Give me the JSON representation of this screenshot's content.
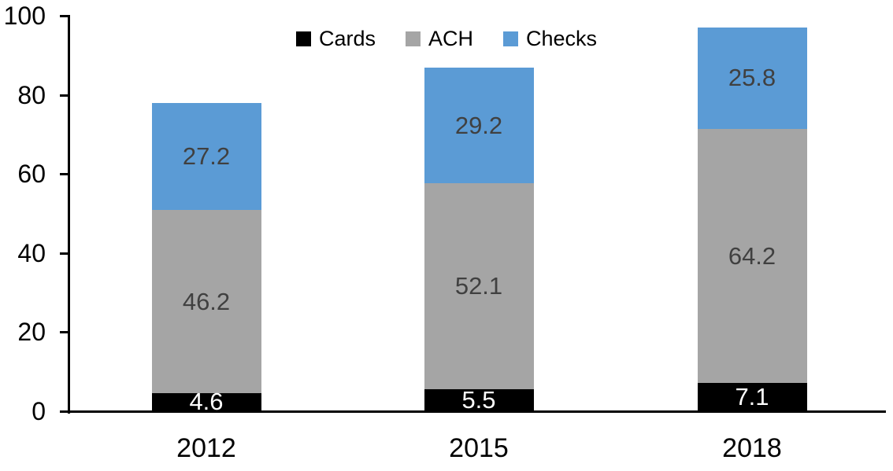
{
  "chart_data": {
    "type": "bar",
    "stacked": true,
    "title": "",
    "xlabel": "",
    "ylabel": "",
    "categories": [
      "2012",
      "2015",
      "2018"
    ],
    "series": [
      {
        "name": "Cards",
        "color": "#000000",
        "label_color": "#ffffff",
        "values": [
          4.6,
          5.5,
          7.1
        ]
      },
      {
        "name": "ACH",
        "color": "#a5a5a5",
        "label_color": "#404040",
        "values": [
          46.2,
          52.1,
          64.2
        ]
      },
      {
        "name": "Checks",
        "color": "#5b9bd5",
        "label_color": "#404040",
        "values": [
          27.2,
          29.2,
          25.8
        ]
      }
    ],
    "ylim": [
      0,
      100
    ],
    "yticks": [
      0,
      20,
      40,
      60,
      80,
      100
    ],
    "grid": false,
    "legend_position": "top",
    "legend_labels": [
      "Cards",
      "ACH",
      "Checks"
    ],
    "axis_color": "#000000",
    "background_color": "#ffffff"
  }
}
